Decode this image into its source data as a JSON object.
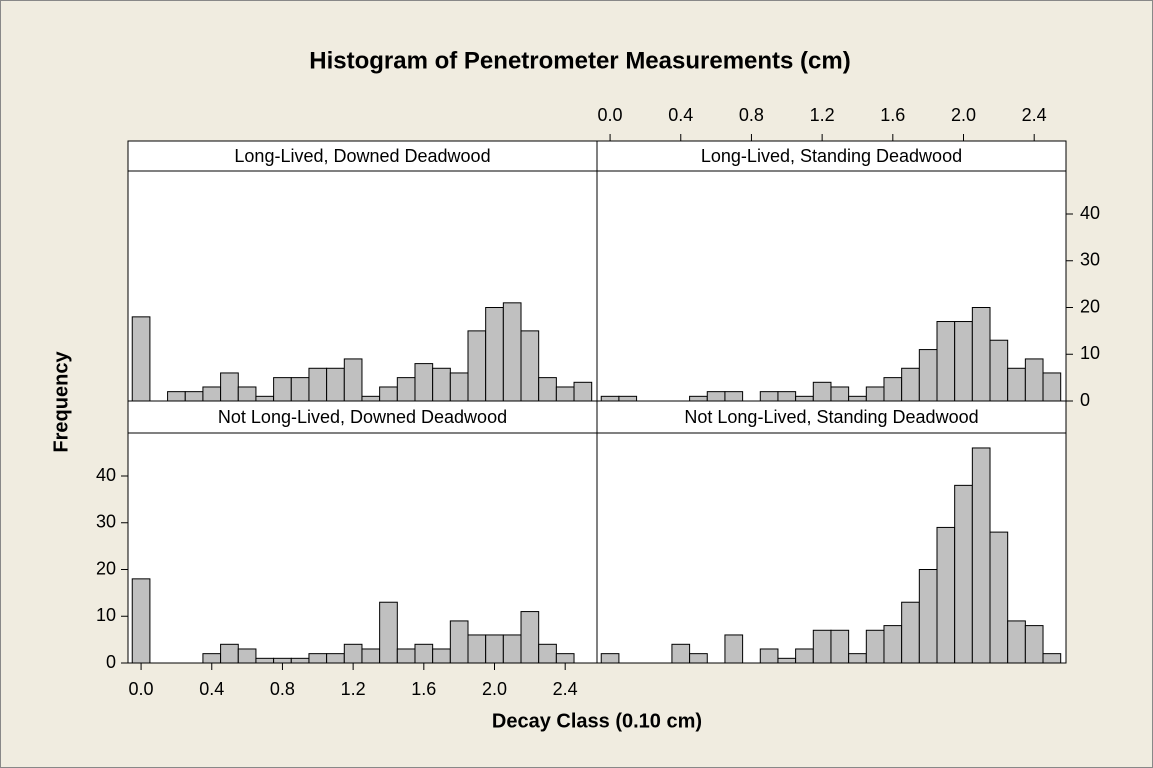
{
  "chart_data": {
    "type": "histogram",
    "title": "Histogram of Penetrometer Measurements (cm)",
    "xlabel": "Decay Class (0.10 cm)",
    "ylabel": "Frequency",
    "bins": [
      -0.05,
      0.05,
      0.15,
      0.25,
      0.35,
      0.45,
      0.55,
      0.65,
      0.75,
      0.85,
      0.95,
      1.05,
      1.15,
      1.25,
      1.35,
      1.45,
      1.55,
      1.65,
      1.75,
      1.85,
      1.95,
      2.05,
      2.15,
      2.25,
      2.35,
      2.45,
      2.55
    ],
    "xlim": [
      -0.074,
      2.58
    ],
    "xticks": [
      {
        "value": 0,
        "label": "0.0"
      },
      0.4,
      0.8,
      1.2,
      1.6,
      {
        "value": 2,
        "label": "2.0"
      },
      2.4
    ],
    "ylim": [
      0,
      49.2
    ],
    "yticks": [
      0,
      10,
      20,
      30,
      40
    ],
    "series": [
      {
        "name": "Long-Lived, Downed Deadwood",
        "color": "#c0c0c0",
        "values": [
          18,
          0,
          2,
          2,
          3,
          6,
          3,
          1,
          5,
          5,
          7,
          7,
          9,
          1,
          3,
          5,
          8,
          7,
          6,
          15,
          20,
          21,
          15,
          5,
          3,
          4
        ]
      },
      {
        "name": "Long-Lived, Standing Deadwood",
        "color": "#c0c0c0",
        "values": [
          1,
          1,
          0,
          0,
          0,
          1,
          2,
          2,
          0,
          2,
          2,
          1,
          4,
          3,
          1,
          3,
          5,
          7,
          11,
          17,
          17,
          20,
          13,
          7,
          9,
          6
        ]
      },
      {
        "name": "Not Long-Lived, Downed Deadwood",
        "color": "#c0c0c0",
        "values": [
          18,
          0,
          0,
          0,
          2,
          4,
          3,
          1,
          1,
          1,
          2,
          2,
          4,
          3,
          13,
          3,
          4,
          3,
          9,
          6,
          6,
          6,
          11,
          4,
          2,
          0
        ]
      },
      {
        "name": "Not Long-Lived, Standing Deadwood",
        "color": "#c0c0c0",
        "values": [
          2,
          0,
          0,
          0,
          4,
          2,
          0,
          6,
          0,
          3,
          1,
          3,
          7,
          7,
          2,
          7,
          8,
          13,
          20,
          29,
          38,
          46,
          28,
          9,
          8,
          2
        ]
      }
    ]
  }
}
